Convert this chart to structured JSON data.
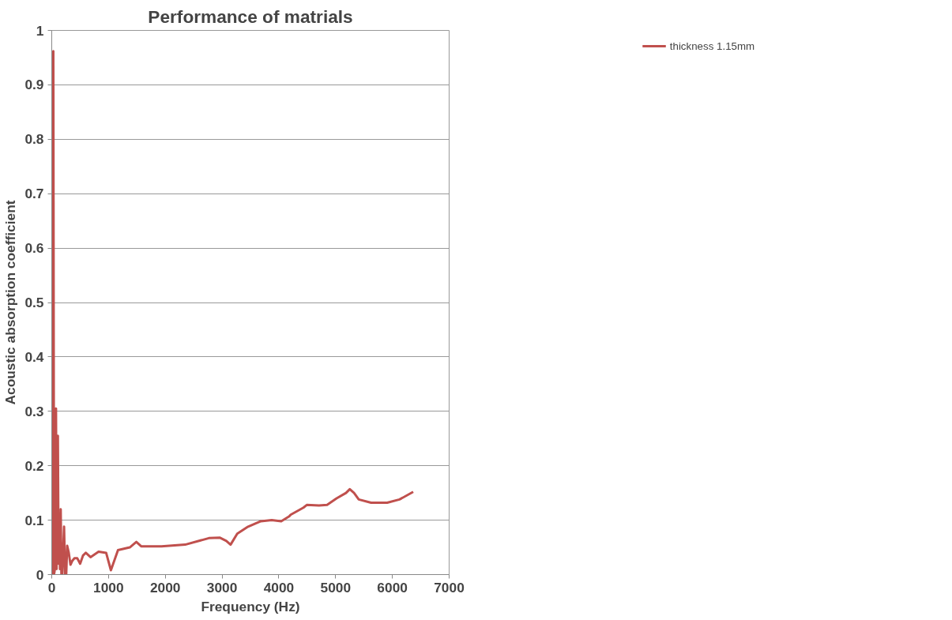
{
  "chart_data": {
    "type": "line",
    "title": "Performance of matrials",
    "xlabel": "Frequency (Hz)",
    "ylabel": "Acoustic absorption coefficient",
    "xlim": [
      0,
      7000
    ],
    "xticks": [
      0,
      1000,
      2000,
      3000,
      4000,
      5000,
      6000,
      7000
    ],
    "ylim": [
      0,
      1
    ],
    "yticks": [
      0,
      0.1,
      0.2,
      0.3,
      0.4,
      0.5,
      0.6,
      0.7,
      0.8,
      0.9,
      1
    ],
    "grid": "y",
    "legend": "top right",
    "marker": "none",
    "line_style": "solid",
    "series": [
      {
        "name": "thickness 1.15mm",
        "color": "#c0504d",
        "x": [
          8,
          16,
          28,
          40,
          55,
          75,
          85,
          108,
          120,
          133,
          145,
          158,
          170,
          185,
          217,
          235,
          255,
          272,
          300,
          330,
          360,
          400,
          450,
          500,
          550,
          600,
          683,
          825,
          958,
          1042,
          1167,
          1375,
          1490,
          1575,
          1933,
          2350,
          2767,
          2958,
          3075,
          3150,
          3267,
          3458,
          3683,
          3875,
          4042,
          4183,
          4208,
          4433,
          4492,
          4708,
          4850,
          5017,
          5183,
          5250,
          5325,
          5408,
          5625,
          5908,
          6125,
          6367
        ],
        "values": [
          0.03,
          0,
          0.962,
          0,
          0.01,
          0.305,
          0.01,
          0.255,
          0.02,
          0.1,
          0.01,
          0.12,
          0,
          0,
          0.088,
          0,
          0,
          0.053,
          0.04,
          0.018,
          0.025,
          0.03,
          0.03,
          0.02,
          0.035,
          0.04,
          0.032,
          0.042,
          0.04,
          0.008,
          0.045,
          0.05,
          0.06,
          0.052,
          0.052,
          0.055,
          0.067,
          0.068,
          0.062,
          0.055,
          0.075,
          0.088,
          0.098,
          0.1,
          0.098,
          0.107,
          0.11,
          0.123,
          0.128,
          0.127,
          0.128,
          0.14,
          0.15,
          0.157,
          0.15,
          0.138,
          0.132,
          0.132,
          0.138,
          0.152
        ]
      }
    ]
  }
}
